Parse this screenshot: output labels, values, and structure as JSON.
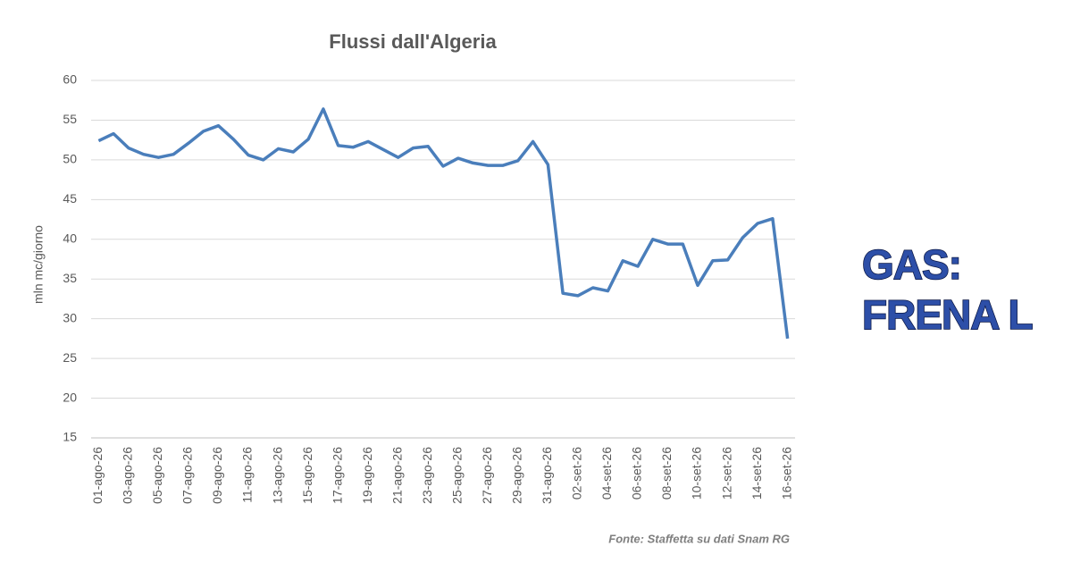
{
  "chart_data": {
    "type": "line",
    "title": "Flussi dall'Algeria",
    "y_label": "mln mc/giorno",
    "source": "Fonte: Staffetta su dati Snam RG",
    "categories": [
      "01-ago-26",
      null,
      "03-ago-26",
      null,
      "05-ago-26",
      null,
      "07-ago-26",
      null,
      "09-ago-26",
      null,
      "11-ago-26",
      null,
      "13-ago-26",
      null,
      "15-ago-26",
      null,
      "17-ago-26",
      null,
      "19-ago-26",
      null,
      "21-ago-26",
      null,
      "23-ago-26",
      null,
      "25-ago-26",
      null,
      "27-ago-26",
      null,
      "29-ago-26",
      null,
      "31-ago-26",
      null,
      "02-set-26",
      null,
      "04-set-26",
      null,
      "06-set-26",
      null,
      "08-set-26",
      null,
      "10-set-26",
      null,
      "12-set-26",
      null,
      "14-set-26",
      null,
      "16-set-26"
    ],
    "values": [
      52.4,
      53.3,
      51.5,
      50.7,
      50.3,
      50.7,
      52.1,
      53.6,
      54.3,
      52.6,
      50.6,
      50.0,
      51.4,
      51.0,
      52.6,
      56.4,
      51.8,
      51.6,
      52.3,
      51.3,
      50.3,
      51.5,
      51.7,
      49.2,
      50.2,
      49.6,
      49.3,
      49.3,
      49.9,
      52.3,
      49.4,
      33.2,
      32.9,
      33.9,
      33.5,
      37.3,
      36.6,
      40.0,
      39.4,
      39.4,
      34.2,
      37.3,
      37.4,
      40.2,
      42.0,
      42.6,
      27.5
    ],
    "color": "#4a7ebb",
    "ylim": [
      15,
      60
    ],
    "yticks": [
      15,
      20,
      25,
      30,
      35,
      40,
      45,
      50,
      55,
      60
    ],
    "grid": true
  },
  "headline": [
    "GAS:",
    "FRENA L"
  ]
}
